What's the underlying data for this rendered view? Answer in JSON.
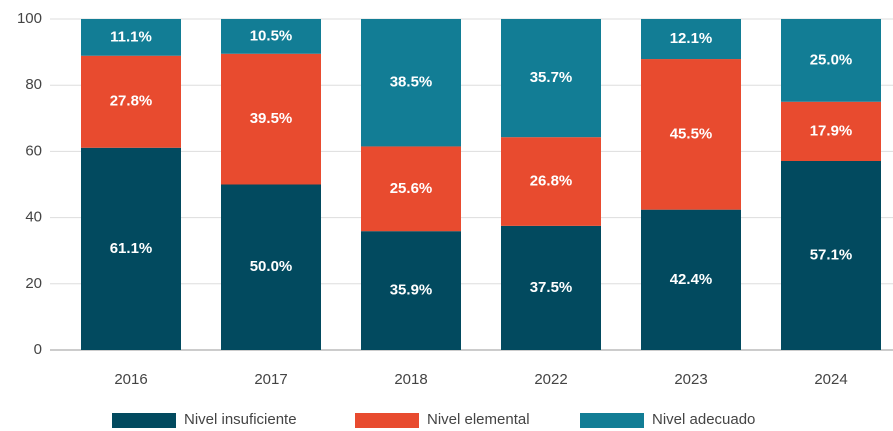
{
  "chart_data": {
    "type": "stacked_bar",
    "categories": [
      "2016",
      "2017",
      "2018",
      "2022",
      "2023",
      "2024"
    ],
    "series": [
      {
        "name": "Nivel insuficiente",
        "color": "#024a5f",
        "values": [
          61.1,
          50.0,
          35.9,
          37.5,
          42.4,
          57.1
        ],
        "value_labels": [
          "61.1%",
          "50.0%",
          "35.9%",
          "37.5%",
          "42.4%",
          "57.1%"
        ]
      },
      {
        "name": "Nivel elemental",
        "color": "#e84b2f",
        "values": [
          27.8,
          39.5,
          25.6,
          26.8,
          45.5,
          17.9
        ],
        "value_labels": [
          "27.8%",
          "39.5%",
          "25.6%",
          "26.8%",
          "45.5%",
          "17.9%"
        ]
      },
      {
        "name": "Nivel adecuado",
        "color": "#127d95",
        "values": [
          11.1,
          10.5,
          38.5,
          35.7,
          12.1,
          25.0
        ],
        "value_labels": [
          "11.1%",
          "10.5%",
          "38.5%",
          "35.7%",
          "12.1%",
          "25.0%"
        ]
      }
    ],
    "ylim": [
      0,
      100
    ],
    "yticks": [
      0,
      20,
      40,
      60,
      80,
      100
    ],
    "grid": true,
    "legend": "bottom"
  }
}
